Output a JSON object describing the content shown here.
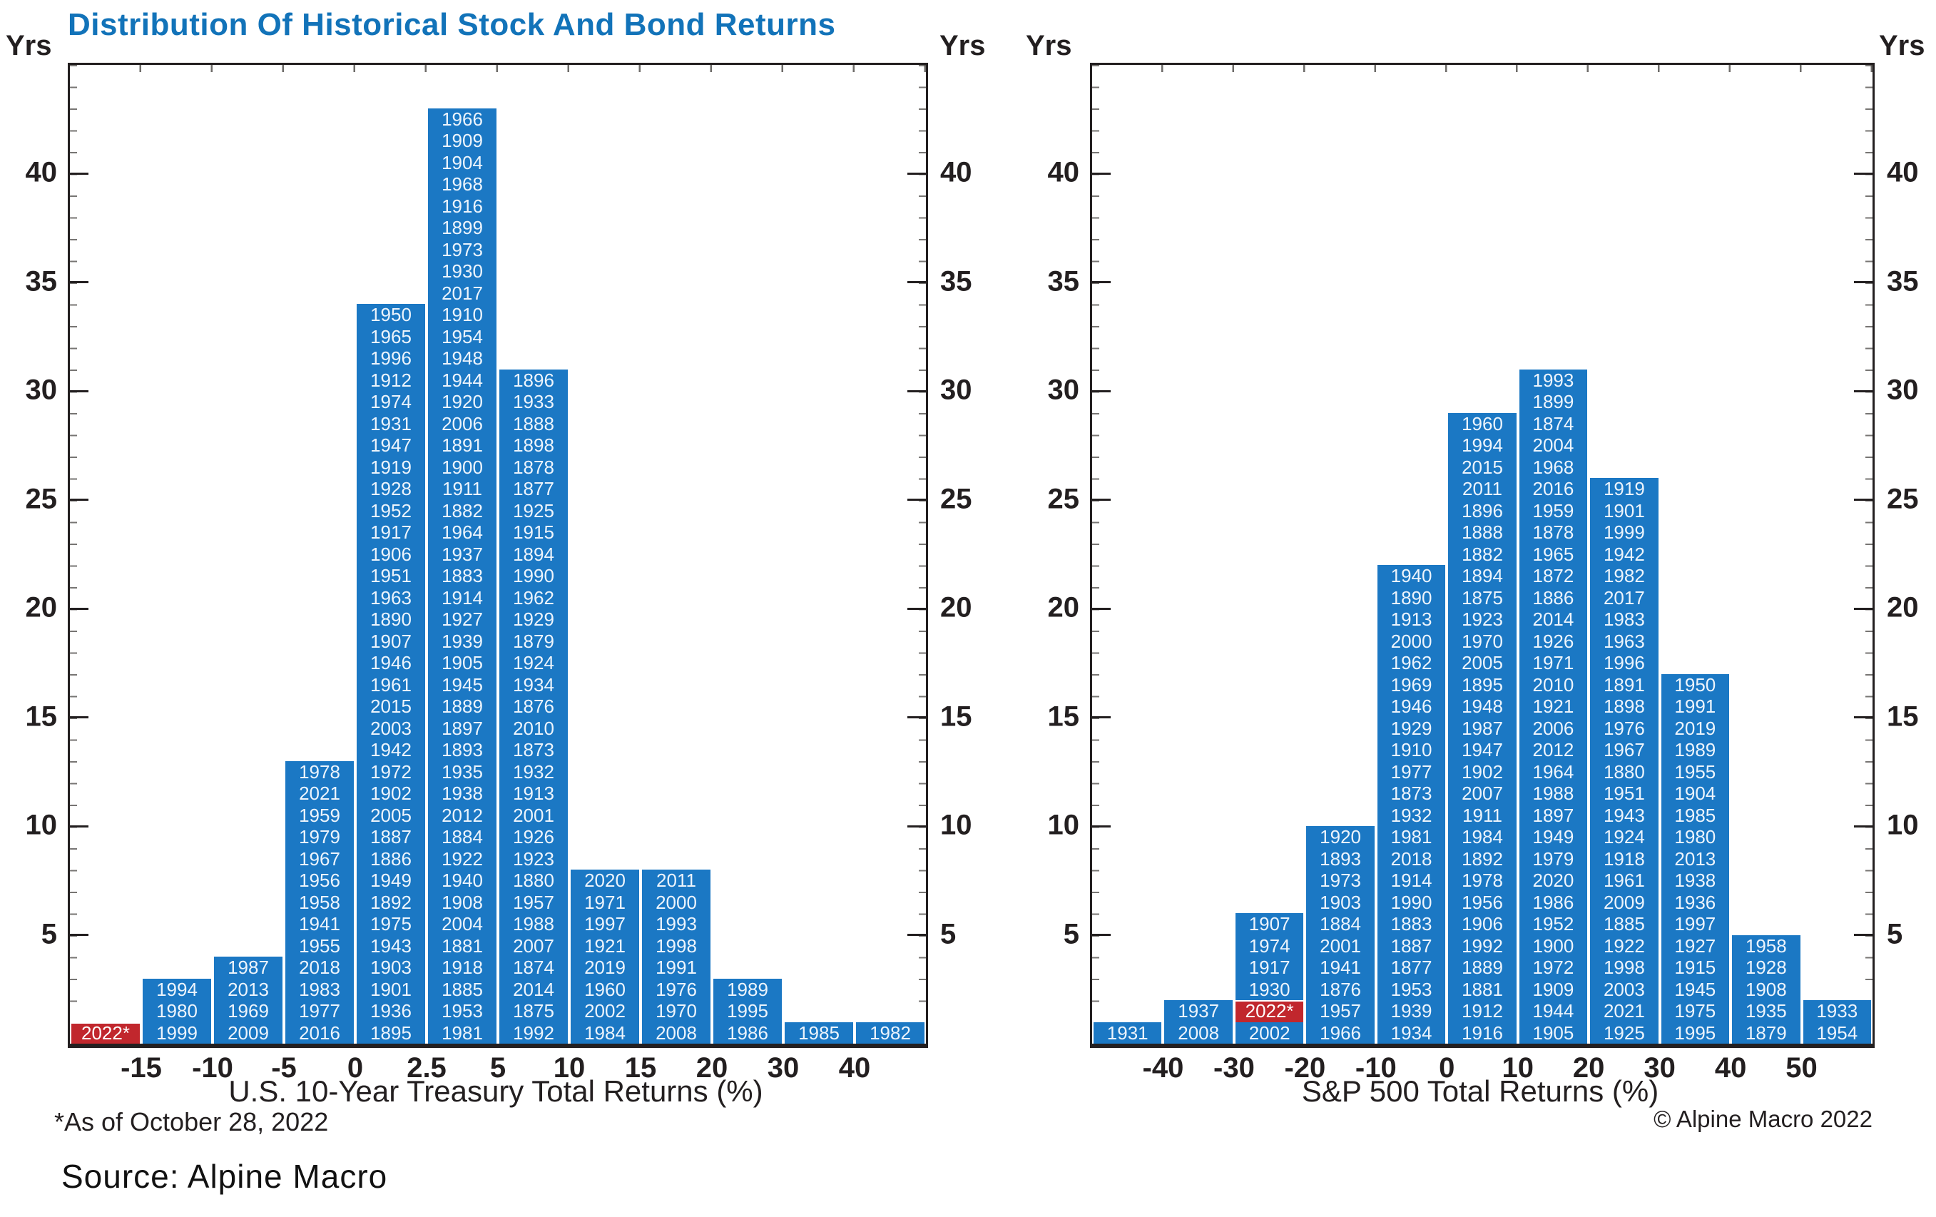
{
  "title": "Distribution Of Historical Stock And Bond Returns",
  "footnote": "*As of October 28, 2022",
  "copyright": "© Alpine Macro 2022",
  "source_note": "Source: Alpine Macro",
  "colors": {
    "bar_blue": "#1b78c4",
    "highlight_red": "#c1272d",
    "title_blue": "#1273b9",
    "axis_black": "#231f20"
  },
  "y_axis": {
    "unit_label": "Yrs",
    "ticks": [
      5,
      10,
      15,
      20,
      25,
      30,
      35,
      40
    ],
    "max": 45
  },
  "note_on_order": "Each column lists years from top of the bar to the bottom; bin edge labels sit at column boundaries; entries containing * are highlighted red.",
  "chart_data": [
    {
      "type": "bar",
      "subtype": "stacked-year-histogram",
      "xlabel": "U.S. 10-Year Treasury Total Returns (%)",
      "ylabel": "Yrs",
      "ylim": [
        0,
        45
      ],
      "yticks": [
        5,
        10,
        15,
        20,
        25,
        30,
        35,
        40
      ],
      "bin_edge_labels": [
        "-15",
        "-10",
        "-5",
        "0",
        "2.5",
        "5",
        "10",
        "15",
        "20",
        "30",
        "40"
      ],
      "values": [
        1,
        3,
        4,
        13,
        34,
        43,
        31,
        8,
        8,
        3,
        1,
        1
      ],
      "columns": [
        [
          "2022*"
        ],
        [
          "1994",
          "1980",
          "1999"
        ],
        [
          "1987",
          "2013",
          "1969",
          "2009"
        ],
        [
          "1978",
          "2021",
          "1959",
          "1979",
          "1967",
          "1956",
          "1958",
          "1941",
          "1955",
          "2018",
          "1983",
          "1977",
          "2016"
        ],
        [
          "1950",
          "1965",
          "1996",
          "1912",
          "1974",
          "1931",
          "1947",
          "1919",
          "1928",
          "1952",
          "1917",
          "1906",
          "1951",
          "1963",
          "1890",
          "1907",
          "1946",
          "1961",
          "2015",
          "2003",
          "1942",
          "1972",
          "1902",
          "2005",
          "1887",
          "1886",
          "1949",
          "1892",
          "1975",
          "1943",
          "1903",
          "1901",
          "1936",
          "1895"
        ],
        [
          "1966",
          "1909",
          "1904",
          "1968",
          "1916",
          "1899",
          "1973",
          "1930",
          "2017",
          "1910",
          "1954",
          "1948",
          "1944",
          "1920",
          "2006",
          "1891",
          "1900",
          "1911",
          "1882",
          "1964",
          "1937",
          "1883",
          "1914",
          "1927",
          "1939",
          "1905",
          "1945",
          "1889",
          "1897",
          "1893",
          "1935",
          "1938",
          "2012",
          "1884",
          "1922",
          "1940",
          "1908",
          "2004",
          "1881",
          "1918",
          "1885",
          "1953",
          "1981"
        ],
        [
          "1896",
          "1933",
          "1888",
          "1898",
          "1878",
          "1877",
          "1925",
          "1915",
          "1894",
          "1990",
          "1962",
          "1929",
          "1879",
          "1924",
          "1934",
          "1876",
          "2010",
          "1873",
          "1932",
          "1913",
          "2001",
          "1926",
          "1923",
          "1880",
          "1957",
          "1988",
          "2007",
          "1874",
          "2014",
          "1875",
          "1992"
        ],
        [
          "2020",
          "1971",
          "1997",
          "1921",
          "2019",
          "1960",
          "2002",
          "1984"
        ],
        [
          "2011",
          "2000",
          "1993",
          "1998",
          "1991",
          "1976",
          "1970",
          "2008"
        ],
        [
          "1989",
          "1995",
          "1986"
        ],
        [
          "1985"
        ],
        [
          "1982"
        ]
      ]
    },
    {
      "type": "bar",
      "subtype": "stacked-year-histogram",
      "xlabel": "S&P 500 Total Returns (%)",
      "ylabel": "Yrs",
      "ylim": [
        0,
        45
      ],
      "yticks": [
        5,
        10,
        15,
        20,
        25,
        30,
        35,
        40
      ],
      "bin_edge_labels": [
        "-40",
        "-30",
        "-20",
        "-10",
        "0",
        "10",
        "20",
        "30",
        "40",
        "50"
      ],
      "values": [
        1,
        2,
        6,
        10,
        22,
        29,
        31,
        26,
        17,
        5,
        2
      ],
      "columns": [
        [
          "1931"
        ],
        [
          "1937",
          "2008"
        ],
        [
          "1907",
          "1974",
          "1917",
          "1930",
          "2022*",
          "2002"
        ],
        [
          "1920",
          "1893",
          "1973",
          "1903",
          "1884",
          "2001",
          "1941",
          "1876",
          "1957",
          "1966"
        ],
        [
          "1940",
          "1890",
          "1913",
          "2000",
          "1962",
          "1969",
          "1946",
          "1929",
          "1910",
          "1977",
          "1873",
          "1932",
          "1981",
          "2018",
          "1914",
          "1990",
          "1883",
          "1887",
          "1877",
          "1953",
          "1939",
          "1934"
        ],
        [
          "1960",
          "1994",
          "2015",
          "2011",
          "1896",
          "1888",
          "1882",
          "1894",
          "1875",
          "1923",
          "1970",
          "2005",
          "1895",
          "1948",
          "1987",
          "1947",
          "1902",
          "2007",
          "1911",
          "1984",
          "1892",
          "1978",
          "1956",
          "1906",
          "1992",
          "1889",
          "1881",
          "1912",
          "1916"
        ],
        [
          "1993",
          "1899",
          "1874",
          "2004",
          "1968",
          "2016",
          "1959",
          "1878",
          "1965",
          "1872",
          "1886",
          "2014",
          "1926",
          "1971",
          "2010",
          "1921",
          "2006",
          "2012",
          "1964",
          "1988",
          "1897",
          "1949",
          "1979",
          "2020",
          "1986",
          "1952",
          "1900",
          "1972",
          "1909",
          "1944",
          "1905"
        ],
        [
          "1919",
          "1901",
          "1999",
          "1942",
          "1982",
          "2017",
          "1983",
          "1963",
          "1996",
          "1891",
          "1898",
          "1976",
          "1967",
          "1880",
          "1951",
          "1943",
          "1924",
          "1918",
          "1961",
          "2009",
          "1885",
          "1922",
          "1998",
          "2003",
          "2021",
          "1925"
        ],
        [
          "1950",
          "1991",
          "2019",
          "1989",
          "1955",
          "1904",
          "1985",
          "1980",
          "2013",
          "1938",
          "1936",
          "1997",
          "1927",
          "1915",
          "1945",
          "1975",
          "1995"
        ],
        [
          "1958",
          "1928",
          "1908",
          "1935",
          "1879"
        ],
        [
          "1933",
          "1954"
        ]
      ]
    }
  ]
}
